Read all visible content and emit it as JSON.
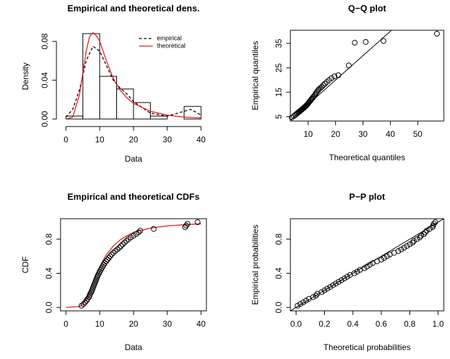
{
  "chart_data": [
    {
      "type": "histogram",
      "title": "Empirical and theoretical dens.",
      "x_label": "Data",
      "y_label": "Density",
      "bins": [
        0,
        5,
        10,
        15,
        20,
        25,
        30,
        35,
        40
      ],
      "values": [
        0.003,
        0.088,
        0.044,
        0.031,
        0.017,
        0.003,
        0,
        0.013
      ],
      "xlim": [
        -1.6,
        41.6
      ],
      "ylim": [
        -0.0035,
        0.0915
      ],
      "xticks": [
        0,
        10,
        20,
        30,
        40
      ],
      "yticks": [
        {
          "value": 0,
          "label": "0.00"
        },
        {
          "value": 0.04,
          "label": "0.04"
        },
        {
          "value": 0.08,
          "label": "0.08"
        }
      ],
      "box": false,
      "legend": "topright",
      "series": [
        {
          "name": "empirical",
          "color": "#000000",
          "linestyle": "dashed",
          "x": [
            0,
            2,
            4,
            6,
            8,
            10,
            12,
            14,
            16,
            18,
            20,
            25,
            30,
            35,
            37,
            40
          ],
          "values": [
            0.002,
            0.01,
            0.03,
            0.06,
            0.075,
            0.07,
            0.055,
            0.04,
            0.032,
            0.026,
            0.018,
            0.006,
            0.003,
            0.008,
            0.01,
            0.004
          ]
        },
        {
          "name": "theoretical",
          "color": "#e41a1c",
          "linestyle": "solid",
          "x": [
            0,
            2,
            4,
            6,
            7,
            8,
            9,
            10,
            12,
            14,
            16,
            18,
            20,
            25,
            30,
            35,
            40
          ],
          "values": [
            0,
            0.002,
            0.025,
            0.07,
            0.085,
            0.089,
            0.086,
            0.08,
            0.06,
            0.042,
            0.03,
            0.022,
            0.016,
            0.008,
            0.004,
            0.002,
            0.001
          ]
        }
      ]
    },
    {
      "type": "scatter",
      "title": "Q−Q plot",
      "x_label": "Theoretical quantiles",
      "y_label": "Empirical quantiles",
      "x": [
        4.0,
        4.8,
        5.3,
        5.7,
        6.1,
        6.4,
        6.7,
        7.0,
        7.2,
        7.5,
        7.7,
        7.9,
        8.1,
        8.3,
        8.5,
        8.7,
        8.9,
        9.1,
        9.3,
        9.5,
        9.7,
        9.9,
        10.1,
        10.3,
        10.5,
        10.8,
        11.0,
        11.3,
        11.6,
        11.9,
        12.2,
        12.5,
        12.8,
        13.2,
        13.6,
        14.0,
        14.5,
        15.0,
        15.5,
        16.1,
        16.8,
        17.6,
        18.5,
        19.6,
        21.0,
        24.8,
        27.0,
        31.0,
        37.5,
        57.0
      ],
      "values": [
        4.6,
        5.2,
        5.7,
        6.1,
        6.4,
        6.8,
        7.0,
        7.2,
        7.5,
        7.7,
        7.9,
        8.1,
        8.3,
        8.5,
        8.7,
        8.9,
        9.1,
        9.3,
        9.5,
        9.8,
        10.0,
        10.3,
        10.6,
        10.9,
        11.2,
        11.5,
        11.9,
        12.3,
        12.7,
        13.1,
        13.5,
        14.0,
        14.6,
        15.2,
        15.8,
        16.3,
        16.8,
        17.3,
        17.9,
        18.5,
        19.2,
        20.0,
        20.8,
        21.5,
        22.0,
        26.0,
        35.3,
        35.6,
        36.0,
        39.0
      ],
      "xlim": [
        3.5,
        59.5
      ],
      "ylim": [
        3.2,
        40.4
      ],
      "xticks": [
        10,
        20,
        30,
        40,
        50
      ],
      "yticks": [
        5,
        15,
        25,
        35
      ],
      "box": true,
      "identity_line": true,
      "point_color": "#000000"
    },
    {
      "type": "scatter",
      "title": "Empirical and theoretical CDFs",
      "x_label": "Data",
      "y_label": "CDF",
      "x": [
        4.6,
        5.2,
        5.7,
        6.1,
        6.4,
        6.8,
        7.0,
        7.2,
        7.5,
        7.7,
        7.9,
        8.1,
        8.3,
        8.5,
        8.7,
        8.9,
        9.1,
        9.3,
        9.5,
        9.8,
        10.0,
        10.3,
        10.6,
        10.9,
        11.2,
        11.5,
        11.9,
        12.3,
        12.7,
        13.1,
        13.5,
        14.0,
        14.6,
        15.2,
        15.8,
        16.3,
        16.8,
        17.3,
        17.9,
        18.5,
        19.2,
        20.0,
        20.8,
        21.5,
        22.0,
        26.0,
        35.3,
        35.6,
        36.0,
        39.0
      ],
      "values": [
        0.02,
        0.04,
        0.06,
        0.08,
        0.1,
        0.12,
        0.14,
        0.16,
        0.18,
        0.2,
        0.22,
        0.24,
        0.26,
        0.28,
        0.3,
        0.32,
        0.34,
        0.36,
        0.38,
        0.4,
        0.42,
        0.44,
        0.46,
        0.48,
        0.5,
        0.52,
        0.54,
        0.56,
        0.58,
        0.6,
        0.62,
        0.64,
        0.66,
        0.68,
        0.7,
        0.72,
        0.74,
        0.76,
        0.78,
        0.8,
        0.82,
        0.84,
        0.86,
        0.88,
        0.9,
        0.92,
        0.94,
        0.96,
        0.98,
        1.0
      ],
      "xlim": [
        -1.6,
        41.6
      ],
      "ylim": [
        -0.04,
        1.04
      ],
      "xticks": [
        0,
        10,
        20,
        30,
        40
      ],
      "yticks": [
        {
          "value": 0,
          "label": "0.0"
        },
        0.4,
        0.8
      ],
      "box": true,
      "point_color": "#000000",
      "series": [
        {
          "color": "#e41a1c",
          "linestyle": "solid",
          "x": [
            0,
            4,
            5,
            6,
            7,
            8,
            9,
            10,
            12,
            14,
            16,
            18,
            20,
            25,
            30,
            35,
            40
          ],
          "values": [
            0,
            0.01,
            0.04,
            0.1,
            0.19,
            0.3,
            0.39,
            0.48,
            0.62,
            0.72,
            0.79,
            0.84,
            0.88,
            0.93,
            0.955,
            0.97,
            0.98
          ]
        }
      ]
    },
    {
      "type": "scatter",
      "title": "P−P plot",
      "x_label": "Theoretical probabilities",
      "y_label": "Empirical probabilities",
      "x": [
        0.01,
        0.03,
        0.05,
        0.07,
        0.09,
        0.12,
        0.14,
        0.15,
        0.18,
        0.2,
        0.22,
        0.24,
        0.26,
        0.28,
        0.3,
        0.32,
        0.34,
        0.36,
        0.38,
        0.41,
        0.43,
        0.45,
        0.48,
        0.5,
        0.52,
        0.54,
        0.57,
        0.6,
        0.62,
        0.64,
        0.66,
        0.69,
        0.72,
        0.74,
        0.76,
        0.78,
        0.8,
        0.82,
        0.83,
        0.85,
        0.87,
        0.88,
        0.9,
        0.91,
        0.92,
        0.94,
        0.96,
        0.965,
        0.97,
        0.98
      ],
      "values": [
        0.02,
        0.04,
        0.06,
        0.08,
        0.1,
        0.12,
        0.14,
        0.16,
        0.18,
        0.2,
        0.22,
        0.24,
        0.26,
        0.28,
        0.3,
        0.32,
        0.34,
        0.36,
        0.38,
        0.4,
        0.42,
        0.44,
        0.46,
        0.48,
        0.5,
        0.52,
        0.54,
        0.56,
        0.58,
        0.6,
        0.62,
        0.64,
        0.66,
        0.68,
        0.7,
        0.72,
        0.74,
        0.76,
        0.78,
        0.8,
        0.82,
        0.84,
        0.86,
        0.88,
        0.9,
        0.92,
        0.94,
        0.96,
        0.98,
        1.0
      ],
      "xlim": [
        -0.04,
        1.04
      ],
      "ylim": [
        -0.04,
        1.04
      ],
      "xticks": [
        {
          "value": 0,
          "label": "0.0"
        },
        0.2,
        0.4,
        0.6,
        0.8,
        {
          "value": 1,
          "label": "1.0"
        }
      ],
      "yticks": [
        {
          "value": 0,
          "label": "0.0"
        },
        0.4,
        0.8
      ],
      "box": true,
      "identity_line": true,
      "point_color": "#000000"
    }
  ]
}
